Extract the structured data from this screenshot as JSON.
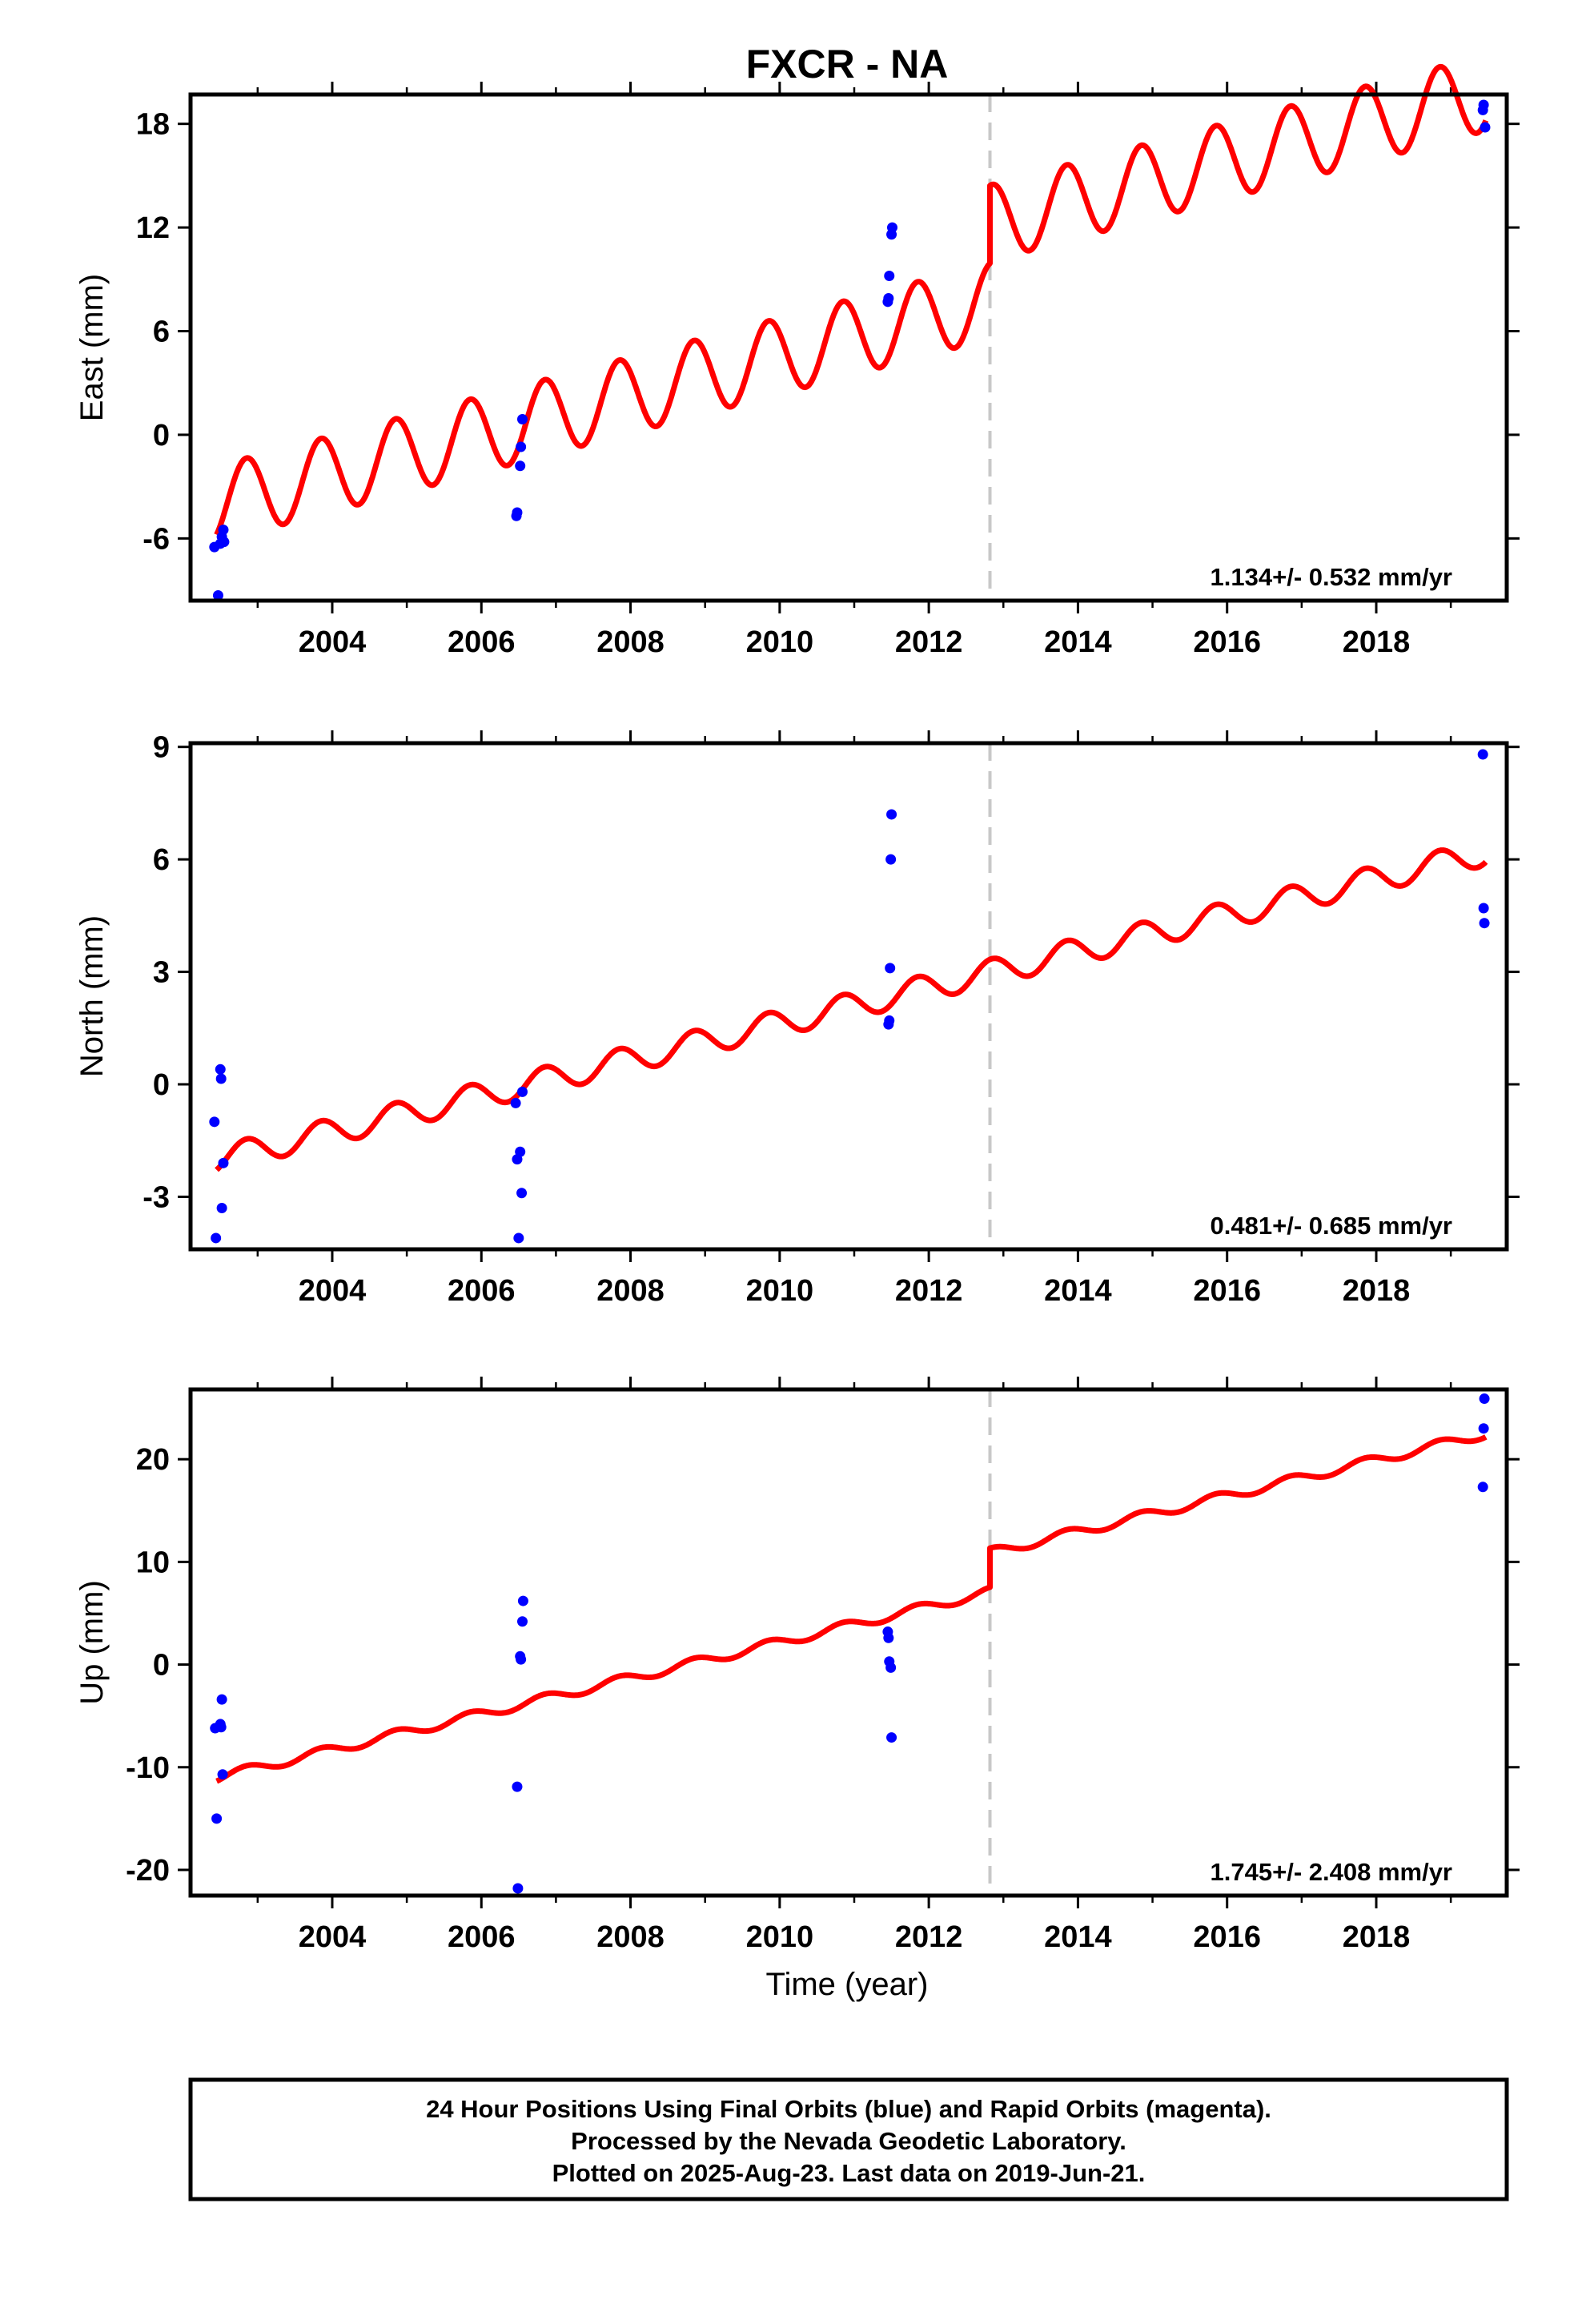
{
  "title": "FXCR - NA",
  "colors": {
    "model": "#ff0000",
    "final_orbits": "#0000ff",
    "event_line": "#c8c8c8",
    "frame": "#000000"
  },
  "footer": {
    "lines": [
      "24 Hour Positions Using Final Orbits (blue) and Rapid Orbits (magenta).",
      "Processed by the Nevada Geodetic Laboratory.",
      "Plotted on 2025-Aug-23. Last data on 2019-Jun-21."
    ]
  },
  "chart_data": [
    {
      "type": "scatter",
      "name": "East",
      "ylabel": "East (mm)",
      "xlabel": "",
      "xlim": [
        2002.1,
        2019.75
      ],
      "ylim": [
        -9.6,
        19.7
      ],
      "yticks": [
        -6,
        0,
        6,
        12,
        18
      ],
      "ytick_labels": [
        "-6",
        "0",
        "6",
        "12",
        "18"
      ],
      "xticks": [
        2004,
        2006,
        2008,
        2010,
        2012,
        2014,
        2016,
        2018
      ],
      "xtick_labels": [
        "2004",
        "2006",
        "2008",
        "2010",
        "2012",
        "2014",
        "2016",
        "2018"
      ],
      "rate_text": "1.134+/- 0.532 mm/yr",
      "event_epoch": 2012.82,
      "model": {
        "start": 2002.45,
        "end": 2019.47,
        "intercept_2002_45": -4.0,
        "rate": 1.134,
        "offset_at_event": 4.5,
        "seasonal_amplitude": 2.2,
        "seasonal_phase_year": 2002.6
      },
      "points": [
        {
          "x": 2002.42,
          "y": -6.5
        },
        {
          "x": 2002.47,
          "y": -9.3
        },
        {
          "x": 2002.5,
          "y": -6.3
        },
        {
          "x": 2002.52,
          "y": -5.9
        },
        {
          "x": 2002.54,
          "y": -5.5
        },
        {
          "x": 2002.55,
          "y": -6.2
        },
        {
          "x": 2006.47,
          "y": -4.7
        },
        {
          "x": 2006.48,
          "y": -4.5
        },
        {
          "x": 2006.52,
          "y": -1.8
        },
        {
          "x": 2006.53,
          "y": -0.7
        },
        {
          "x": 2006.55,
          "y": 0.9
        },
        {
          "x": 2011.45,
          "y": 7.7
        },
        {
          "x": 2011.46,
          "y": 7.9
        },
        {
          "x": 2011.47,
          "y": 9.2
        },
        {
          "x": 2011.5,
          "y": 11.6
        },
        {
          "x": 2011.51,
          "y": 12.0
        },
        {
          "x": 2019.43,
          "y": 18.8
        },
        {
          "x": 2019.44,
          "y": 19.1
        },
        {
          "x": 2019.46,
          "y": 17.8
        }
      ]
    },
    {
      "type": "scatter",
      "name": "North",
      "ylabel": "North (mm)",
      "xlabel": "",
      "xlim": [
        2002.1,
        2019.75
      ],
      "ylim": [
        -4.4,
        9.1
      ],
      "yticks": [
        -3,
        0,
        3,
        6,
        9
      ],
      "ytick_labels": [
        "-3",
        "0",
        "3",
        "6",
        "9"
      ],
      "xticks": [
        2004,
        2006,
        2008,
        2010,
        2012,
        2014,
        2016,
        2018
      ],
      "xtick_labels": [
        "2004",
        "2006",
        "2008",
        "2010",
        "2012",
        "2014",
        "2016",
        "2018"
      ],
      "rate_text": "0.481+/- 0.685 mm/yr",
      "event_epoch": 2012.82,
      "model": {
        "start": 2002.45,
        "end": 2019.47,
        "intercept_2002_45": -2.0,
        "rate": 0.481,
        "offset_at_event": 0.0,
        "seasonal_amplitude": 0.35,
        "seasonal_phase_year": 2002.6
      },
      "points": [
        {
          "x": 2002.42,
          "y": -1.0
        },
        {
          "x": 2002.44,
          "y": -4.1
        },
        {
          "x": 2002.5,
          "y": 0.4
        },
        {
          "x": 2002.51,
          "y": 0.15
        },
        {
          "x": 2002.52,
          "y": -3.3
        },
        {
          "x": 2002.54,
          "y": -2.1
        },
        {
          "x": 2006.46,
          "y": -0.5
        },
        {
          "x": 2006.48,
          "y": -2.0
        },
        {
          "x": 2006.5,
          "y": -4.1
        },
        {
          "x": 2006.52,
          "y": -1.8
        },
        {
          "x": 2006.54,
          "y": -2.9
        },
        {
          "x": 2006.55,
          "y": -0.2
        },
        {
          "x": 2011.46,
          "y": 1.6
        },
        {
          "x": 2011.47,
          "y": 1.7
        },
        {
          "x": 2011.48,
          "y": 3.1
        },
        {
          "x": 2011.49,
          "y": 6.0
        },
        {
          "x": 2011.5,
          "y": 7.2
        },
        {
          "x": 2019.43,
          "y": 8.8
        },
        {
          "x": 2019.44,
          "y": 4.7
        },
        {
          "x": 2019.45,
          "y": 4.3
        }
      ]
    },
    {
      "type": "scatter",
      "name": "Up",
      "ylabel": "Up (mm)",
      "xlabel": "Time (year)",
      "xlim": [
        2002.1,
        2019.75
      ],
      "ylim": [
        -22.5,
        26.8
      ],
      "yticks": [
        -20,
        -10,
        0,
        10,
        20
      ],
      "ytick_labels": [
        "-20",
        "-10",
        "0",
        "10",
        "20"
      ],
      "xticks": [
        2004,
        2006,
        2008,
        2010,
        2012,
        2014,
        2016,
        2018
      ],
      "xtick_labels": [
        "2004",
        "2006",
        "2008",
        "2010",
        "2012",
        "2014",
        "2016",
        "2018"
      ],
      "rate_text": "1.745+/- 2.408 mm/yr",
      "event_epoch": 2012.82,
      "model": {
        "start": 2002.45,
        "end": 2019.47,
        "intercept_2002_45": -11.0,
        "rate": 1.745,
        "offset_at_event": 3.8,
        "seasonal_amplitude": 0.45,
        "seasonal_phase_year": 2002.6
      },
      "points": [
        {
          "x": 2002.43,
          "y": -6.2
        },
        {
          "x": 2002.45,
          "y": -15.0
        },
        {
          "x": 2002.5,
          "y": -5.8
        },
        {
          "x": 2002.51,
          "y": -6.1
        },
        {
          "x": 2002.52,
          "y": -3.4
        },
        {
          "x": 2002.53,
          "y": -10.7
        },
        {
          "x": 2006.48,
          "y": -11.9
        },
        {
          "x": 2006.49,
          "y": -21.8
        },
        {
          "x": 2006.52,
          "y": 0.8
        },
        {
          "x": 2006.53,
          "y": 0.5
        },
        {
          "x": 2006.55,
          "y": 4.2
        },
        {
          "x": 2006.56,
          "y": 6.2
        },
        {
          "x": 2011.45,
          "y": 3.2
        },
        {
          "x": 2011.46,
          "y": 2.6
        },
        {
          "x": 2011.47,
          "y": 0.3
        },
        {
          "x": 2011.49,
          "y": -0.3
        },
        {
          "x": 2011.5,
          "y": -7.1
        },
        {
          "x": 2019.43,
          "y": 17.3
        },
        {
          "x": 2019.44,
          "y": 23.0
        },
        {
          "x": 2019.45,
          "y": 25.9
        }
      ]
    }
  ]
}
